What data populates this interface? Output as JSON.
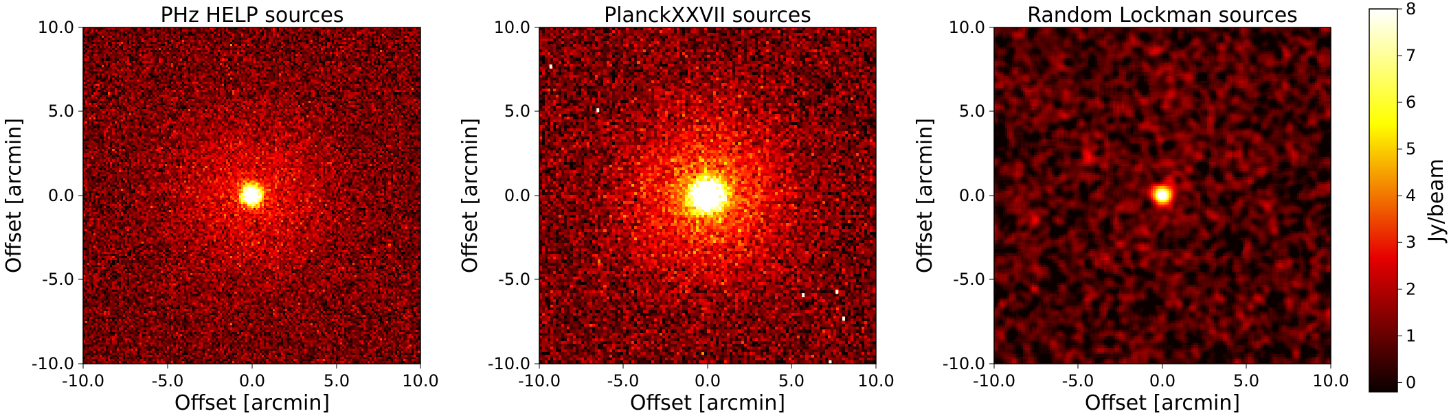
{
  "chart_data": [
    {
      "type": "heatmap",
      "title": "PHz HELP sources",
      "xlabel": "Offset [arcmin]",
      "ylabel": "Offset [arcmin]",
      "xlim": [
        -10.0,
        10.0
      ],
      "ylim": [
        -10.0,
        10.0
      ],
      "xticks": [
        "-10.0",
        "-5.0",
        "0.0",
        "5.0",
        "10.0"
      ],
      "yticks": [
        "-10.0",
        "-5.0",
        "0.0",
        "5.0",
        "10.0"
      ],
      "peak_offset": [
        0.0,
        0.0
      ]
    },
    {
      "type": "heatmap",
      "title": "PlanckXXVII sources",
      "xlabel": "Offset [arcmin]",
      "ylabel": "Offset [arcmin]",
      "xlim": [
        -10.0,
        10.0
      ],
      "ylim": [
        -10.0,
        10.0
      ],
      "xticks": [
        "-10.0",
        "-5.0",
        "0.0",
        "5.0",
        "10.0"
      ],
      "yticks": [
        "-10.0",
        "-5.0",
        "0.0",
        "5.0",
        "10.0"
      ],
      "peak_offset": [
        0.0,
        0.0
      ]
    },
    {
      "type": "heatmap",
      "title": "Random Lockman sources",
      "xlabel": "Offset [arcmin]",
      "ylabel": "Offset [arcmin]",
      "xlim": [
        -10.0,
        10.0
      ],
      "ylim": [
        -10.0,
        10.0
      ],
      "xticks": [
        "-10.0",
        "-5.0",
        "0.0",
        "5.0",
        "10.0"
      ],
      "yticks": [
        "-10.0",
        "-5.0",
        "0.0",
        "5.0",
        "10.0"
      ],
      "peak_offset": [
        0.0,
        0.0
      ]
    }
  ],
  "colorbar": {
    "label": "Jy/beam",
    "range": [
      -0.2,
      8.0
    ],
    "ticks": [
      "0",
      "1",
      "2",
      "3",
      "4",
      "5",
      "6",
      "7",
      "8"
    ],
    "colormap": "hot"
  }
}
